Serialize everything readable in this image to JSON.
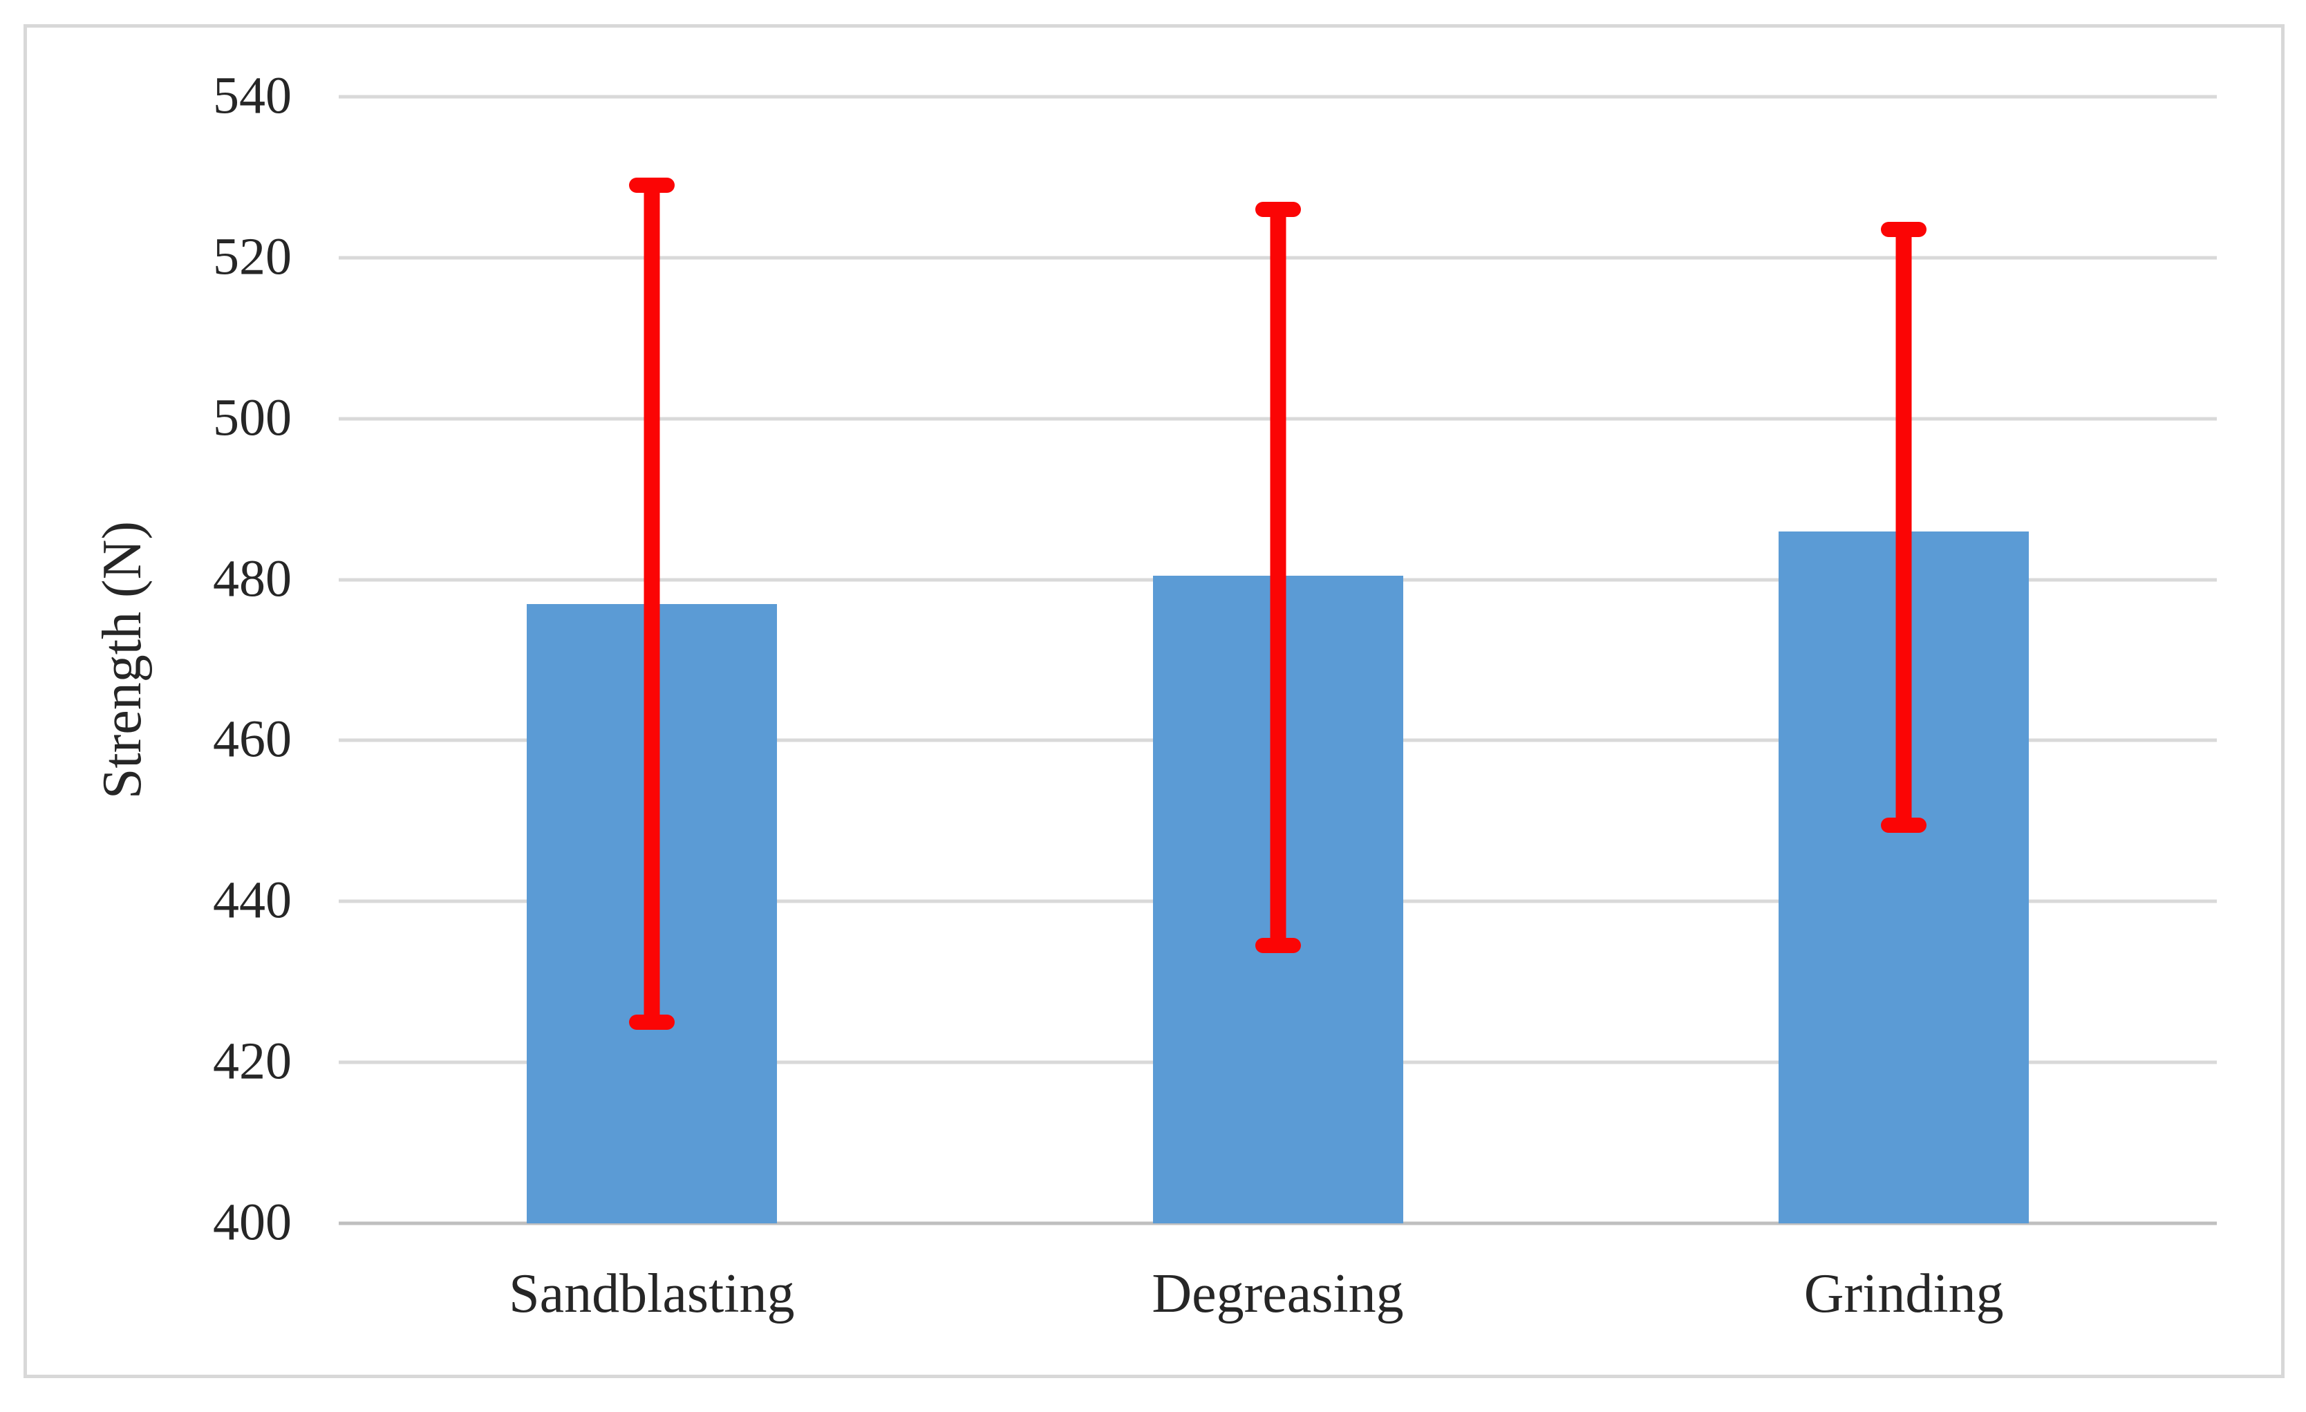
{
  "chart_data": {
    "type": "bar",
    "title": "",
    "categories": [
      "Sandblasting",
      "Degreasing",
      "Grinding"
    ],
    "values": [
      477,
      480.5,
      486
    ],
    "error_bars": [
      {
        "low": 425,
        "high": 529
      },
      {
        "low": 434.5,
        "high": 526
      },
      {
        "low": 449.5,
        "high": 523.5
      }
    ],
    "xlabel": "",
    "ylabel": "Strength (N)",
    "ylim": [
      400,
      540
    ],
    "yticks": [
      540,
      520,
      500,
      480,
      460,
      440,
      420,
      400
    ],
    "ytick_step": 20,
    "grid": "horizontal",
    "legend": "none",
    "background": "#FFFFFF",
    "bar_color": "#5B9BD5",
    "error_bar_color": "#FB0505",
    "gridline_color": "#D9D9D9",
    "axis_line_color": "#BFBFBF",
    "text_color": "#262626",
    "frame_border_color": "#D8D8D8"
  }
}
